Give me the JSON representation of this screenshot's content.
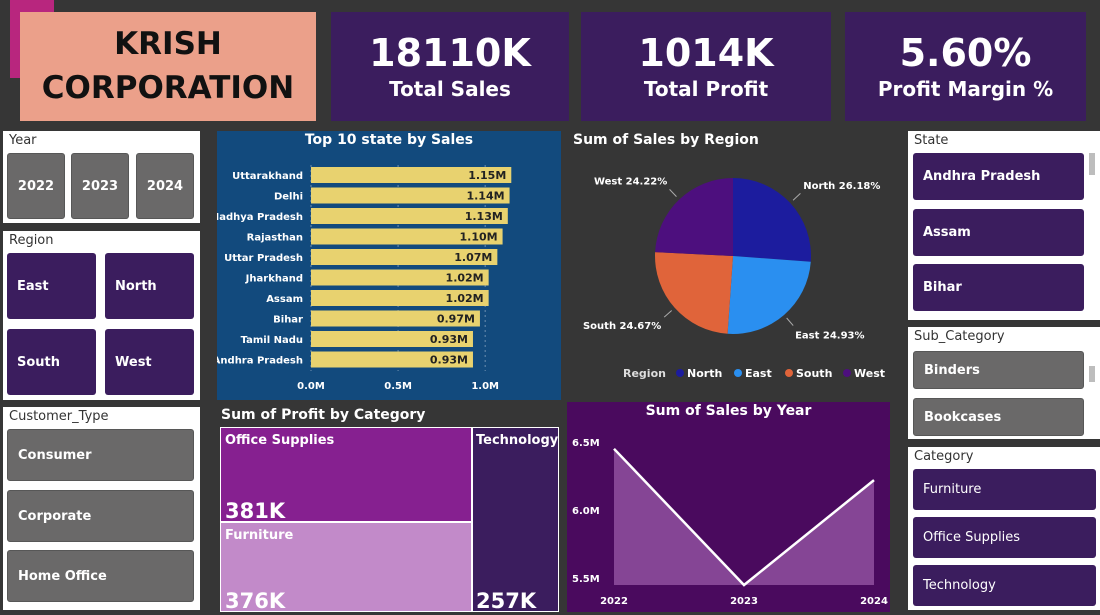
{
  "brand": {
    "line1": "KRISH",
    "line2": "CORPORATION"
  },
  "kpis": [
    {
      "value": "18110K",
      "label": "Total Sales"
    },
    {
      "value": "1014K",
      "label": "Total Profit"
    },
    {
      "value": "5.60%",
      "label": "Profit Margin %"
    }
  ],
  "year_slicer": {
    "label": "Year",
    "options": [
      "2022",
      "2023",
      "2024"
    ]
  },
  "region_slicer": {
    "label": "Region",
    "options": [
      "East",
      "North",
      "South",
      "West"
    ]
  },
  "customer_slicer": {
    "label": "Customer_Type",
    "options": [
      "Consumer",
      "Corporate",
      "Home Office"
    ]
  },
  "state_slicer": {
    "label": "State",
    "options": [
      "Andhra Pradesh",
      "Assam",
      "Bihar"
    ]
  },
  "subcat_slicer": {
    "label": "Sub_Category",
    "options": [
      "Binders",
      "Bookcases"
    ]
  },
  "category_slicer": {
    "label": "Category",
    "options": [
      "Furniture",
      "Office Supplies",
      "Technology"
    ]
  },
  "colors": {
    "kpi_bg": "#3b1d5e",
    "bar": "#e8d26f",
    "bar_panel": "#124a7d",
    "north": "#1c1c9e",
    "east": "#2a8ff0",
    "south": "#e0643a",
    "west": "#4d0f7e",
    "tm_office": "#862090",
    "tm_furniture": "#c28ac9",
    "tm_technology": "#3b1d5e",
    "line_panel": "#4a0a5e"
  },
  "chart_data": [
    {
      "type": "bar",
      "title": "Top 10 state by Sales",
      "categories": [
        "Uttarakhand",
        "Delhi",
        "Madhya Pradesh",
        "Rajasthan",
        "Uttar Pradesh",
        "Jharkhand",
        "Assam",
        "Bihar",
        "Tamil Nadu",
        "Andhra Pradesh"
      ],
      "values": [
        1.15,
        1.14,
        1.13,
        1.1,
        1.07,
        1.02,
        1.02,
        0.97,
        0.93,
        0.93
      ],
      "data_labels": [
        "1.15M",
        "1.14M",
        "1.13M",
        "1.10M",
        "1.07M",
        "1.02M",
        "1.02M",
        "0.97M",
        "0.93M",
        "0.93M"
      ],
      "xticks": [
        "0.0M",
        "0.5M",
        "1.0M"
      ],
      "xlim": [
        0,
        1.2
      ]
    },
    {
      "type": "pie",
      "title": "Sum of Sales by Region",
      "slices": [
        {
          "name": "North",
          "value": 26.18,
          "label": "North 26.18%"
        },
        {
          "name": "East",
          "value": 24.93,
          "label": "East 24.93%"
        },
        {
          "name": "South",
          "value": 24.67,
          "label": "South 24.67%"
        },
        {
          "name": "West",
          "value": 24.22,
          "label": "West 24.22%"
        }
      ],
      "legend_title": "Region",
      "legend_placement": "bottom"
    },
    {
      "type": "table",
      "title": "Sum of Profit by Category",
      "cells": [
        {
          "name": "Office Supplies",
          "value": 381,
          "label": "381K"
        },
        {
          "name": "Furniture",
          "value": 376,
          "label": "376K"
        },
        {
          "name": "Technology",
          "value": 257,
          "label": "257K"
        }
      ]
    },
    {
      "type": "area",
      "title": "Sum of Sales by Year",
      "categories": [
        "2022",
        "2023",
        "2024"
      ],
      "values": [
        6.45,
        5.45,
        6.22
      ],
      "yticks": [
        "6.5M",
        "6.0M",
        "5.5M"
      ],
      "ylim": [
        5.45,
        6.5
      ]
    }
  ]
}
